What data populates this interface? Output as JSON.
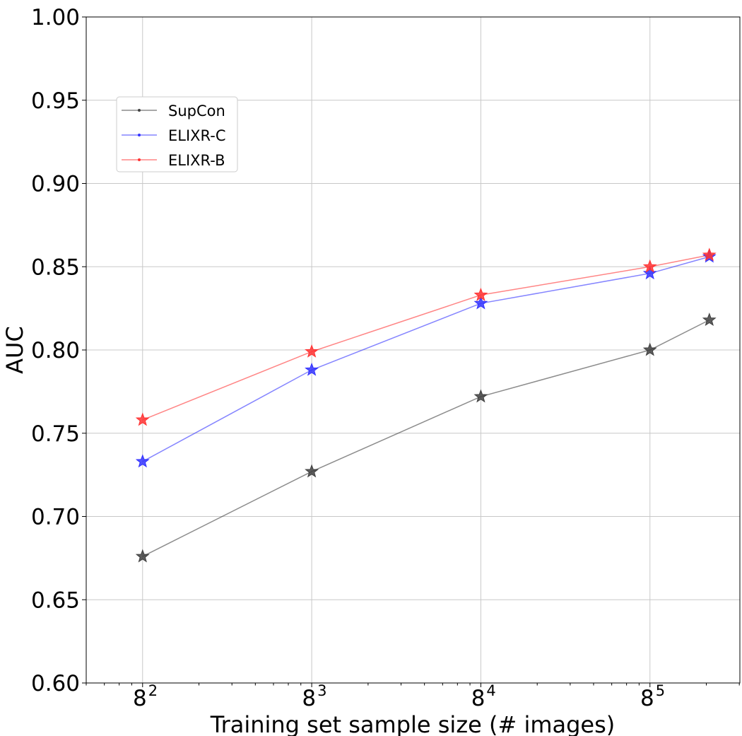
{
  "chart_data": {
    "type": "line",
    "title": "",
    "xlabel": "Training set sample size (# images)",
    "ylabel": "AUC",
    "x_scale": "log",
    "x_log_base": 8,
    "xlim": [
      32,
      99000
    ],
    "ylim": [
      0.6,
      1.0
    ],
    "grid": true,
    "legend_position": "upper-left",
    "x_ticks": [
      {
        "value": 64,
        "base": "8",
        "exp": "2"
      },
      {
        "value": 512,
        "base": "8",
        "exp": "3"
      },
      {
        "value": 4096,
        "base": "8",
        "exp": "4"
      },
      {
        "value": 32768,
        "base": "8",
        "exp": "5"
      }
    ],
    "y_ticks": [
      "0.60",
      "0.65",
      "0.70",
      "0.75",
      "0.80",
      "0.85",
      "0.90",
      "0.95",
      "1.00"
    ],
    "x": [
      64,
      512,
      4096,
      32768,
      68000
    ],
    "series": [
      {
        "name": "SupCon",
        "color": "#404040",
        "values": [
          0.676,
          0.727,
          0.772,
          0.8,
          0.818
        ]
      },
      {
        "name": "ELIXR-C",
        "color": "#3333ff",
        "values": [
          0.733,
          0.788,
          0.828,
          0.846,
          0.856
        ]
      },
      {
        "name": "ELIXR-B",
        "color": "#ff3333",
        "values": [
          0.758,
          0.799,
          0.833,
          0.85,
          0.857
        ]
      }
    ]
  }
}
